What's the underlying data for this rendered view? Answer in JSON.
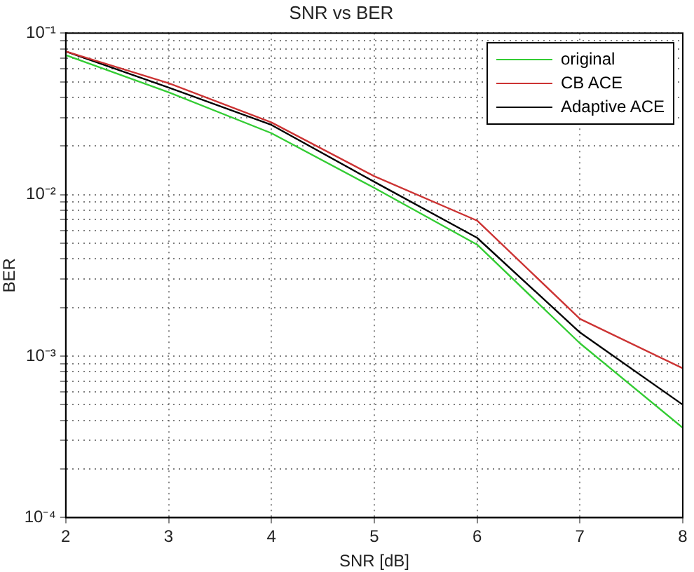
{
  "chart_data": {
    "type": "line",
    "title": "SNR vs BER",
    "xlabel": "SNR [dB]",
    "ylabel": "BER",
    "x": [
      2,
      3,
      4,
      5,
      6,
      7,
      8
    ],
    "series": [
      {
        "name": "original",
        "color": "#33cc33",
        "values": [
          0.073,
          0.043,
          0.024,
          0.011,
          0.0049,
          0.0012,
          0.00036
        ]
      },
      {
        "name": "CB ACE",
        "color": "#cc3333",
        "values": [
          0.077,
          0.049,
          0.028,
          0.013,
          0.0069,
          0.0017,
          0.00084
        ]
      },
      {
        "name": "Adaptive ACE",
        "color": "#000000",
        "values": [
          0.077,
          0.046,
          0.027,
          0.012,
          0.0054,
          0.0014,
          0.0005
        ]
      }
    ],
    "log": true,
    "xlim": [
      2,
      8
    ],
    "xticks": [
      2,
      3,
      4,
      5,
      6,
      7,
      8
    ],
    "ylim": [
      0.0001,
      0.1
    ],
    "yticks": [
      {
        "value": 0.0001,
        "label": "10⁻⁴"
      },
      {
        "value": 0.0002,
        "label": null
      },
      {
        "value": 0.0003,
        "label": null
      },
      {
        "value": 0.0004,
        "label": null
      },
      {
        "value": 0.0005,
        "label": null
      },
      {
        "value": 0.0006,
        "label": null
      },
      {
        "value": 0.0007,
        "label": null
      },
      {
        "value": 0.0008,
        "label": null
      },
      {
        "value": 0.0009,
        "label": null
      },
      {
        "value": 0.001,
        "label": "10⁻³"
      },
      {
        "value": 0.002,
        "label": null
      },
      {
        "value": 0.003,
        "label": null
      },
      {
        "value": 0.004,
        "label": null
      },
      {
        "value": 0.005,
        "label": null
      },
      {
        "value": 0.006,
        "label": null
      },
      {
        "value": 0.007,
        "label": null
      },
      {
        "value": 0.008,
        "label": null
      },
      {
        "value": 0.009,
        "label": null
      },
      {
        "value": 0.01,
        "label": "10⁻²"
      },
      {
        "value": 0.02,
        "label": null
      },
      {
        "value": 0.03,
        "label": null
      },
      {
        "value": 0.04,
        "label": null
      },
      {
        "value": 0.05,
        "label": null
      },
      {
        "value": 0.06,
        "label": null
      },
      {
        "value": 0.07,
        "label": null
      },
      {
        "value": 0.08,
        "label": null
      },
      {
        "value": 0.09,
        "label": null
      },
      {
        "value": 0.1,
        "label": "10⁻¹"
      }
    ],
    "grid": true,
    "legend": "top right",
    "marker": "none",
    "line_style": "solid"
  }
}
